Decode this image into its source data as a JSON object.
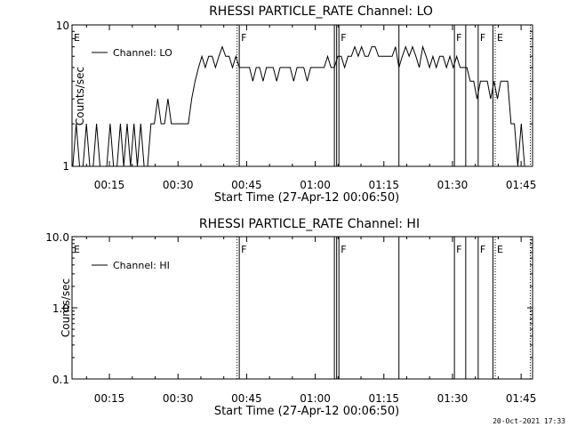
{
  "start_time_label": "Start Time (27-Apr-12 00:06:50)",
  "footer_timestamp": "20-Oct-2021 17:33",
  "colors": {
    "background": "#ffffff",
    "foreground": "#000000"
  },
  "chart_data": [
    {
      "type": "line",
      "title": "RHESSI PARTICLE_RATE Channel: LO",
      "xlabel": "Start Time (27-Apr-12 00:06:50)",
      "ylabel": "Counts/sec",
      "yscale": "log",
      "ylim": [
        1,
        10
      ],
      "xlim_minutes": [
        6.83,
        47.5
      ],
      "y_tick_labels": [
        "1",
        "10"
      ],
      "x_tick_labels": [
        "00:15",
        "00:30",
        "00:45",
        "01:00",
        "01:15",
        "01:30",
        "01:45"
      ],
      "legend": "Channel: LO",
      "legend_position": "top-left",
      "series": [
        {
          "name": "Channel: LO",
          "points": [
            [
              6.9,
              1
            ],
            [
              7.2,
              2
            ],
            [
              7.5,
              1
            ],
            [
              7.8,
              1
            ],
            [
              8.1,
              2
            ],
            [
              8.4,
              1
            ],
            [
              8.7,
              1
            ],
            [
              9.0,
              2
            ],
            [
              9.3,
              1
            ],
            [
              9.6,
              1
            ],
            [
              9.9,
              1
            ],
            [
              10.2,
              2
            ],
            [
              10.5,
              1
            ],
            [
              10.8,
              1
            ],
            [
              11.1,
              2
            ],
            [
              11.4,
              1
            ],
            [
              11.7,
              2
            ],
            [
              12.0,
              1
            ],
            [
              12.3,
              2
            ],
            [
              12.6,
              1
            ],
            [
              12.9,
              2
            ],
            [
              13.2,
              1
            ],
            [
              13.5,
              1
            ],
            [
              13.8,
              2
            ],
            [
              14.1,
              2
            ],
            [
              14.4,
              3
            ],
            [
              14.7,
              2
            ],
            [
              15.0,
              2
            ],
            [
              15.3,
              3
            ],
            [
              15.6,
              2
            ],
            [
              15.9,
              2
            ],
            [
              16.2,
              2
            ],
            [
              16.5,
              2
            ],
            [
              16.8,
              2
            ],
            [
              17.1,
              2
            ],
            [
              17.4,
              3
            ],
            [
              17.7,
              4
            ],
            [
              18.0,
              5
            ],
            [
              18.3,
              6
            ],
            [
              18.6,
              5
            ],
            [
              18.9,
              6
            ],
            [
              19.2,
              6
            ],
            [
              19.5,
              5
            ],
            [
              19.8,
              6
            ],
            [
              20.1,
              7
            ],
            [
              20.4,
              6
            ],
            [
              20.7,
              6
            ],
            [
              21.0,
              5
            ],
            [
              21.3,
              6
            ],
            [
              21.6,
              5
            ],
            [
              21.9,
              5
            ],
            [
              22.2,
              5
            ],
            [
              22.5,
              5
            ],
            [
              22.8,
              4
            ],
            [
              23.1,
              5
            ],
            [
              23.4,
              5
            ],
            [
              23.7,
              4
            ],
            [
              24.0,
              5
            ],
            [
              24.3,
              5
            ],
            [
              24.6,
              5
            ],
            [
              24.9,
              4
            ],
            [
              25.2,
              5
            ],
            [
              25.5,
              5
            ],
            [
              25.8,
              5
            ],
            [
              26.1,
              5
            ],
            [
              26.4,
              4
            ],
            [
              26.7,
              5
            ],
            [
              27.0,
              5
            ],
            [
              27.3,
              5
            ],
            [
              27.6,
              4
            ],
            [
              27.9,
              5
            ],
            [
              28.2,
              5
            ],
            [
              28.5,
              5
            ],
            [
              28.8,
              5
            ],
            [
              29.1,
              5
            ],
            [
              29.4,
              6
            ],
            [
              29.7,
              5
            ],
            [
              30.0,
              5
            ],
            [
              30.3,
              6
            ],
            [
              30.6,
              6
            ],
            [
              30.9,
              5
            ],
            [
              31.2,
              6
            ],
            [
              31.5,
              6
            ],
            [
              31.8,
              7
            ],
            [
              32.1,
              6
            ],
            [
              32.4,
              7
            ],
            [
              32.7,
              6
            ],
            [
              33.0,
              6
            ],
            [
              33.3,
              7
            ],
            [
              33.6,
              7
            ],
            [
              33.9,
              6
            ],
            [
              34.2,
              6
            ],
            [
              34.5,
              6
            ],
            [
              34.8,
              6
            ],
            [
              35.1,
              6
            ],
            [
              35.4,
              7
            ],
            [
              35.7,
              5
            ],
            [
              36.0,
              6
            ],
            [
              36.3,
              7
            ],
            [
              36.6,
              6
            ],
            [
              36.9,
              7
            ],
            [
              37.2,
              6
            ],
            [
              37.5,
              5
            ],
            [
              37.8,
              7
            ],
            [
              38.1,
              6
            ],
            [
              38.4,
              5
            ],
            [
              38.7,
              6
            ],
            [
              39.0,
              5
            ],
            [
              39.3,
              6
            ],
            [
              39.6,
              6
            ],
            [
              39.9,
              5
            ],
            [
              40.2,
              6
            ],
            [
              40.5,
              5
            ],
            [
              40.8,
              6
            ],
            [
              41.1,
              5
            ],
            [
              41.4,
              5
            ],
            [
              41.7,
              5
            ],
            [
              42.0,
              4
            ],
            [
              42.3,
              4
            ],
            [
              42.6,
              3
            ],
            [
              42.9,
              4
            ],
            [
              43.2,
              4
            ],
            [
              43.5,
              4
            ],
            [
              43.8,
              3
            ],
            [
              44.1,
              4
            ],
            [
              44.4,
              3
            ],
            [
              44.7,
              4
            ],
            [
              45.0,
              4
            ],
            [
              45.3,
              4
            ],
            [
              45.6,
              2
            ],
            [
              45.9,
              2
            ],
            [
              46.2,
              1
            ],
            [
              46.5,
              2
            ],
            [
              46.8,
              1
            ],
            [
              47.1,
              1
            ],
            [
              47.4,
              1
            ]
          ]
        }
      ],
      "flag_lines": [
        {
          "minute": 6.83,
          "style": "dotted",
          "label": "E"
        },
        {
          "minute": 21.4,
          "style": "dotted",
          "label": ""
        },
        {
          "minute": 21.6,
          "style": "solid",
          "label": "F"
        },
        {
          "minute": 30.0,
          "style": "solid",
          "label": ""
        },
        {
          "minute": 30.2,
          "style": "solid",
          "label": ""
        },
        {
          "minute": 30.4,
          "style": "solid",
          "label": "F"
        },
        {
          "minute": 35.7,
          "style": "solid",
          "label": ""
        },
        {
          "minute": 40.6,
          "style": "solid",
          "label": "F"
        },
        {
          "minute": 41.6,
          "style": "solid",
          "label": ""
        },
        {
          "minute": 42.7,
          "style": "solid",
          "label": "F"
        },
        {
          "minute": 44.0,
          "style": "solid",
          "label": ""
        },
        {
          "minute": 44.2,
          "style": "dotted",
          "label": "E"
        },
        {
          "minute": 47.3,
          "style": "dotted",
          "label": ""
        }
      ]
    },
    {
      "type": "line",
      "title": "RHESSI PARTICLE_RATE Channel: HI",
      "xlabel": "Start Time (27-Apr-12 00:06:50)",
      "ylabel": "Counts/sec",
      "yscale": "log",
      "ylim": [
        0.1,
        10
      ],
      "xlim_minutes": [
        6.83,
        47.5
      ],
      "y_tick_labels": [
        "0.1",
        "1.0",
        "10.0"
      ],
      "x_tick_labels": [
        "00:15",
        "00:30",
        "00:45",
        "01:00",
        "01:15",
        "01:30",
        "01:45"
      ],
      "legend": "Channel: HI",
      "legend_position": "top-left",
      "series": [
        {
          "name": "Channel: HI",
          "points": []
        }
      ],
      "flag_lines": [
        {
          "minute": 6.83,
          "style": "dotted",
          "label": "E"
        },
        {
          "minute": 21.4,
          "style": "dotted",
          "label": ""
        },
        {
          "minute": 21.6,
          "style": "solid",
          "label": "F"
        },
        {
          "minute": 30.0,
          "style": "solid",
          "label": ""
        },
        {
          "minute": 30.2,
          "style": "solid",
          "label": ""
        },
        {
          "minute": 30.4,
          "style": "solid",
          "label": "F"
        },
        {
          "minute": 35.7,
          "style": "solid",
          "label": ""
        },
        {
          "minute": 40.6,
          "style": "solid",
          "label": "F"
        },
        {
          "minute": 41.6,
          "style": "solid",
          "label": ""
        },
        {
          "minute": 42.7,
          "style": "solid",
          "label": "F"
        },
        {
          "minute": 44.0,
          "style": "solid",
          "label": ""
        },
        {
          "minute": 44.2,
          "style": "dotted",
          "label": "E"
        },
        {
          "minute": 47.3,
          "style": "dotted",
          "label": ""
        }
      ]
    }
  ]
}
